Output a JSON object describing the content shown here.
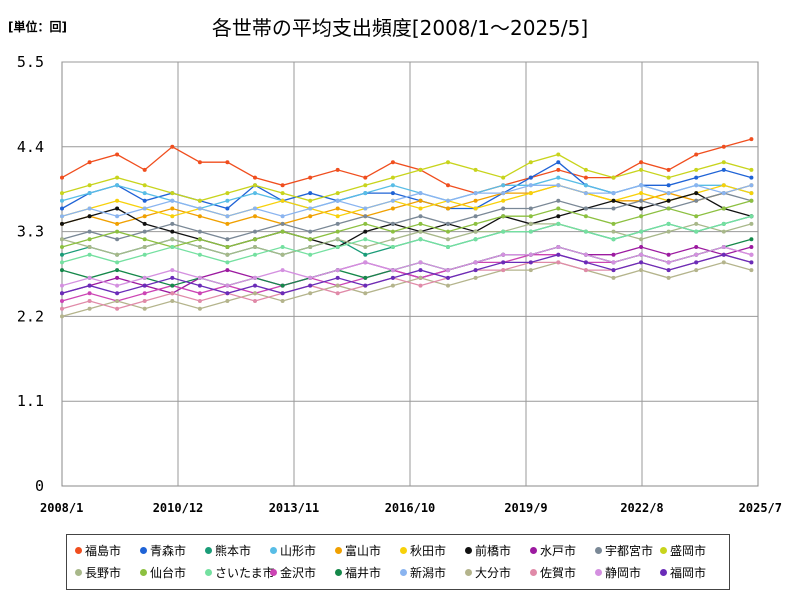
{
  "chart_data": {
    "type": "line",
    "title": "各世帯の平均支出頻度[2008/1～2025/5]",
    "unit_label": "[単位：回]",
    "x_start": "2008/1",
    "x_end": "2025/5",
    "x_ticks": [
      "2008/1",
      "2010/12",
      "2013/11",
      "2016/10",
      "2019/9",
      "2022/8",
      "2025/7"
    ],
    "y_ticks": [
      0,
      1.1,
      2.2,
      3.3,
      4.4,
      5.5
    ],
    "ylim": [
      0,
      5.5
    ],
    "grid": true,
    "legend_position": "bottom",
    "series": [
      {
        "name": "福島市",
        "color": "#f04e1e",
        "values": [
          4.0,
          4.2,
          4.3,
          4.1,
          4.4,
          4.2,
          4.2,
          4.0,
          3.9,
          4.0,
          4.1,
          4.0,
          4.2,
          4.1,
          3.9,
          3.8,
          3.9,
          4.0,
          4.1,
          4.0,
          4.0,
          4.2,
          4.1,
          4.3,
          4.4,
          4.5
        ]
      },
      {
        "name": "青森市",
        "color": "#1f63d6",
        "values": [
          3.6,
          3.8,
          3.9,
          3.7,
          3.8,
          3.7,
          3.6,
          3.9,
          3.7,
          3.8,
          3.7,
          3.8,
          3.8,
          3.7,
          3.6,
          3.6,
          3.8,
          4.0,
          4.2,
          3.9,
          3.8,
          3.9,
          3.9,
          4.0,
          4.1,
          4.0
        ]
      },
      {
        "name": "熊本市",
        "color": "#1a9c78",
        "values": [
          3.0,
          3.1,
          3.0,
          3.1,
          3.2,
          3.1,
          3.0,
          3.1,
          3.0,
          3.1,
          3.2,
          3.0,
          3.1,
          3.2,
          3.1,
          3.2,
          3.3,
          3.3,
          3.4,
          3.3,
          3.2,
          3.3,
          3.4,
          3.3,
          3.4,
          3.5
        ]
      },
      {
        "name": "山形市",
        "color": "#58bde6",
        "values": [
          3.7,
          3.8,
          3.9,
          3.8,
          3.7,
          3.6,
          3.7,
          3.8,
          3.7,
          3.6,
          3.7,
          3.8,
          3.9,
          3.8,
          3.7,
          3.8,
          3.9,
          3.9,
          4.0,
          3.9,
          3.8,
          3.9,
          3.8,
          3.9,
          3.9,
          3.8
        ]
      },
      {
        "name": "富山市",
        "color": "#f0a000",
        "values": [
          3.4,
          3.5,
          3.4,
          3.5,
          3.6,
          3.5,
          3.4,
          3.5,
          3.4,
          3.5,
          3.6,
          3.5,
          3.6,
          3.7,
          3.6,
          3.7,
          3.8,
          3.8,
          3.9,
          3.8,
          3.7,
          3.7,
          3.8,
          3.7,
          3.8,
          3.9
        ]
      },
      {
        "name": "秋田市",
        "color": "#f7d10a",
        "values": [
          3.5,
          3.6,
          3.7,
          3.6,
          3.5,
          3.6,
          3.5,
          3.6,
          3.7,
          3.6,
          3.5,
          3.6,
          3.7,
          3.6,
          3.7,
          3.6,
          3.7,
          3.8,
          3.9,
          3.8,
          3.7,
          3.8,
          3.7,
          3.8,
          3.9,
          3.8
        ]
      },
      {
        "name": "前橋市",
        "color": "#111111",
        "values": [
          3.4,
          3.5,
          3.6,
          3.4,
          3.3,
          3.2,
          3.1,
          3.2,
          3.3,
          3.2,
          3.1,
          3.3,
          3.4,
          3.3,
          3.4,
          3.3,
          3.5,
          3.4,
          3.5,
          3.6,
          3.7,
          3.6,
          3.7,
          3.8,
          3.6,
          3.5
        ]
      },
      {
        "name": "水戸市",
        "color": "#9c1aa0",
        "values": [
          2.5,
          2.6,
          2.7,
          2.6,
          2.5,
          2.7,
          2.8,
          2.7,
          2.6,
          2.7,
          2.8,
          2.9,
          2.8,
          2.7,
          2.8,
          2.9,
          3.0,
          3.0,
          3.1,
          3.0,
          3.0,
          3.1,
          3.0,
          3.1,
          3.0,
          3.1
        ]
      },
      {
        "name": "宇都宮市",
        "color": "#7a8896",
        "values": [
          3.2,
          3.3,
          3.2,
          3.3,
          3.4,
          3.3,
          3.2,
          3.3,
          3.4,
          3.3,
          3.4,
          3.5,
          3.4,
          3.5,
          3.4,
          3.5,
          3.6,
          3.6,
          3.7,
          3.6,
          3.6,
          3.7,
          3.6,
          3.7,
          3.8,
          3.7
        ]
      },
      {
        "name": "盛岡市",
        "color": "#c8d41c",
        "values": [
          3.8,
          3.9,
          4.0,
          3.9,
          3.8,
          3.7,
          3.8,
          3.9,
          3.8,
          3.7,
          3.8,
          3.9,
          4.0,
          4.1,
          4.2,
          4.1,
          4.0,
          4.2,
          4.3,
          4.1,
          4.0,
          4.1,
          4.0,
          4.1,
          4.2,
          4.1
        ]
      },
      {
        "name": "長野市",
        "color": "#a8b88a",
        "values": [
          3.2,
          3.1,
          3.0,
          3.1,
          3.2,
          3.1,
          3.0,
          3.1,
          3.0,
          3.1,
          3.2,
          3.1,
          3.2,
          3.3,
          3.2,
          3.3,
          3.3,
          3.4,
          3.4,
          3.3,
          3.3,
          3.2,
          3.3,
          3.4,
          3.3,
          3.4
        ]
      },
      {
        "name": "仙台市",
        "color": "#8cc040",
        "values": [
          3.1,
          3.2,
          3.3,
          3.2,
          3.1,
          3.2,
          3.1,
          3.2,
          3.3,
          3.2,
          3.3,
          3.4,
          3.3,
          3.4,
          3.3,
          3.4,
          3.5,
          3.5,
          3.6,
          3.5,
          3.4,
          3.5,
          3.6,
          3.5,
          3.6,
          3.7
        ]
      },
      {
        "name": "さいたま市",
        "color": "#74e0a0",
        "values": [
          2.9,
          3.0,
          2.9,
          3.0,
          3.1,
          3.0,
          2.9,
          3.0,
          3.1,
          3.0,
          3.1,
          3.2,
          3.1,
          3.2,
          3.1,
          3.2,
          3.3,
          3.3,
          3.4,
          3.3,
          3.2,
          3.3,
          3.4,
          3.3,
          3.4,
          3.5
        ]
      },
      {
        "name": "金沢市",
        "color": "#cc44b4",
        "values": [
          2.4,
          2.5,
          2.4,
          2.5,
          2.6,
          2.5,
          2.6,
          2.5,
          2.6,
          2.7,
          2.6,
          2.7,
          2.8,
          2.7,
          2.8,
          2.9,
          2.9,
          3.0,
          3.0,
          2.9,
          2.9,
          3.0,
          2.9,
          3.0,
          3.1,
          3.0
        ]
      },
      {
        "name": "福井市",
        "color": "#15884a",
        "values": [
          2.8,
          2.7,
          2.8,
          2.7,
          2.6,
          2.7,
          2.6,
          2.7,
          2.6,
          2.7,
          2.8,
          2.7,
          2.8,
          2.9,
          2.8,
          2.9,
          3.0,
          3.0,
          3.1,
          3.0,
          2.9,
          3.0,
          2.9,
          3.0,
          3.1,
          3.2
        ]
      },
      {
        "name": "新潟市",
        "color": "#8ab4f0",
        "values": [
          3.5,
          3.6,
          3.5,
          3.6,
          3.7,
          3.6,
          3.5,
          3.6,
          3.5,
          3.6,
          3.7,
          3.6,
          3.7,
          3.8,
          3.7,
          3.8,
          3.8,
          3.9,
          3.9,
          3.8,
          3.8,
          3.9,
          3.8,
          3.9,
          3.8,
          3.9
        ]
      },
      {
        "name": "大分市",
        "color": "#b4b48c",
        "values": [
          2.2,
          2.3,
          2.4,
          2.3,
          2.4,
          2.3,
          2.4,
          2.5,
          2.4,
          2.5,
          2.6,
          2.5,
          2.6,
          2.7,
          2.6,
          2.7,
          2.8,
          2.8,
          2.9,
          2.8,
          2.7,
          2.8,
          2.7,
          2.8,
          2.9,
          2.8
        ]
      },
      {
        "name": "佐賀市",
        "color": "#e08aa8",
        "values": [
          2.3,
          2.4,
          2.3,
          2.4,
          2.5,
          2.4,
          2.5,
          2.4,
          2.5,
          2.6,
          2.5,
          2.6,
          2.7,
          2.6,
          2.7,
          2.8,
          2.8,
          2.9,
          2.9,
          2.8,
          2.8,
          2.9,
          2.8,
          2.9,
          3.0,
          2.9
        ]
      },
      {
        "name": "静岡市",
        "color": "#d490e0",
        "values": [
          2.6,
          2.7,
          2.6,
          2.7,
          2.8,
          2.7,
          2.6,
          2.7,
          2.8,
          2.7,
          2.8,
          2.9,
          2.8,
          2.9,
          2.8,
          2.9,
          3.0,
          3.0,
          3.1,
          3.0,
          2.9,
          3.0,
          2.9,
          3.0,
          3.1,
          3.0
        ]
      },
      {
        "name": "福岡市",
        "color": "#6a2cb8",
        "values": [
          2.5,
          2.6,
          2.5,
          2.6,
          2.7,
          2.6,
          2.5,
          2.6,
          2.5,
          2.6,
          2.7,
          2.6,
          2.7,
          2.8,
          2.7,
          2.8,
          2.9,
          2.9,
          3.0,
          2.9,
          2.8,
          2.9,
          2.8,
          2.9,
          3.0,
          2.9
        ]
      }
    ]
  }
}
